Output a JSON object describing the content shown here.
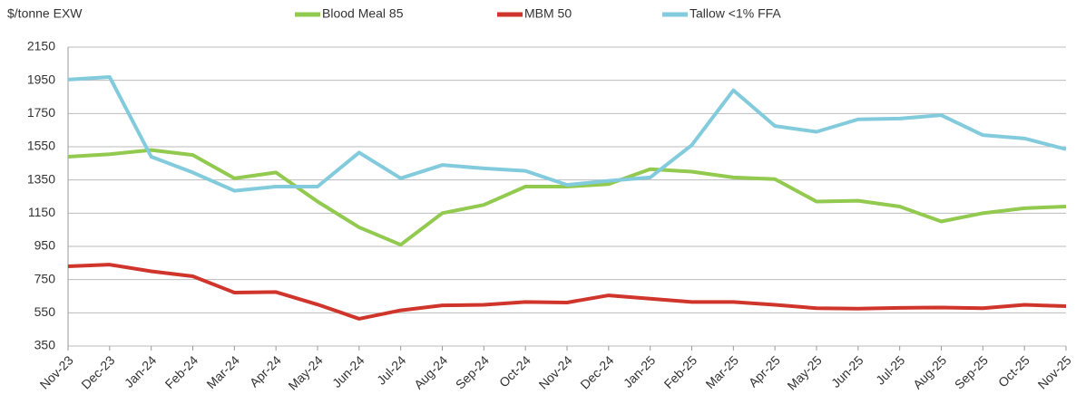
{
  "chart_data": {
    "type": "line",
    "ylabel": "$/tonne EXW",
    "categories": [
      "Nov-23",
      "Dec-23",
      "Jan-24",
      "Feb-24",
      "Mar-24",
      "Apr-24",
      "May-24",
      "Jun-24",
      "Jul-24",
      "Aug-24",
      "Sep-24",
      "Oct-24",
      "Nov-24",
      "Dec-24",
      "Jan-25",
      "Feb-25",
      "Mar-25",
      "Apr-25",
      "May-25",
      "Jun-25",
      "Jul-25",
      "Aug-25",
      "Sep-25",
      "Oct-25",
      "Nov-25"
    ],
    "series": [
      {
        "name": "Blood Meal 85",
        "color": "#92c94f",
        "values": [
          1490,
          1505,
          1530,
          1500,
          1360,
          1395,
          1220,
          1065,
          960,
          1150,
          1200,
          1310,
          1310,
          1325,
          1415,
          1400,
          1365,
          1355,
          1220,
          1225,
          1190,
          1100,
          1150,
          1180,
          1190
        ]
      },
      {
        "name": "MBM 50",
        "color": "#d0352b",
        "values": [
          830,
          840,
          800,
          770,
          672,
          675,
          600,
          514,
          565,
          595,
          598,
          615,
          612,
          655,
          635,
          615,
          615,
          598,
          578,
          575,
          580,
          582,
          578,
          598,
          590
        ]
      },
      {
        "name": "Tallow <1% FFA",
        "color": "#82cbdc",
        "values": [
          1954,
          1970,
          1490,
          1395,
          1285,
          1310,
          1310,
          1515,
          1360,
          1440,
          1420,
          1405,
          1320,
          1345,
          1365,
          1560,
          1890,
          1675,
          1640,
          1715,
          1720,
          1740,
          1620,
          1600,
          1535
        ]
      }
    ],
    "ylim": [
      350,
      2150
    ],
    "yticks": [
      350,
      550,
      750,
      950,
      1150,
      1350,
      1550,
      1750,
      1950,
      2150
    ],
    "grid": true
  }
}
